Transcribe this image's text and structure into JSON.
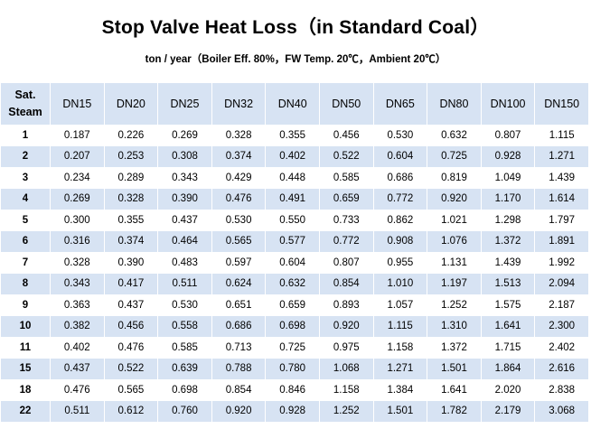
{
  "title": "Stop Valve Heat Loss（in Standard Coal）",
  "subtitle": "ton / year（Boiler Eff. 80%，FW Temp. 20℃，Ambient 20℃）",
  "header": {
    "first_line1": "Sat.",
    "first_line2": "Steam",
    "columns": [
      "DN15",
      "DN20",
      "DN25",
      "DN32",
      "DN40",
      "DN50",
      "DN65",
      "DN80",
      "DN100",
      "DN150"
    ]
  },
  "rows": [
    {
      "pressure": "1",
      "values": [
        "0.187",
        "0.226",
        "0.269",
        "0.328",
        "0.355",
        "0.456",
        "0.530",
        "0.632",
        "0.807",
        "1.115"
      ]
    },
    {
      "pressure": "2",
      "values": [
        "0.207",
        "0.253",
        "0.308",
        "0.374",
        "0.402",
        "0.522",
        "0.604",
        "0.725",
        "0.928",
        "1.271"
      ]
    },
    {
      "pressure": "3",
      "values": [
        "0.234",
        "0.289",
        "0.343",
        "0.429",
        "0.448",
        "0.585",
        "0.686",
        "0.819",
        "1.049",
        "1.439"
      ]
    },
    {
      "pressure": "4",
      "values": [
        "0.269",
        "0.328",
        "0.390",
        "0.476",
        "0.491",
        "0.659",
        "0.772",
        "0.920",
        "1.170",
        "1.614"
      ]
    },
    {
      "pressure": "5",
      "values": [
        "0.300",
        "0.355",
        "0.437",
        "0.530",
        "0.550",
        "0.733",
        "0.862",
        "1.021",
        "1.298",
        "1.797"
      ]
    },
    {
      "pressure": "6",
      "values": [
        "0.316",
        "0.374",
        "0.464",
        "0.565",
        "0.577",
        "0.772",
        "0.908",
        "1.076",
        "1.372",
        "1.891"
      ]
    },
    {
      "pressure": "7",
      "values": [
        "0.328",
        "0.390",
        "0.483",
        "0.597",
        "0.604",
        "0.807",
        "0.955",
        "1.131",
        "1.439",
        "1.992"
      ]
    },
    {
      "pressure": "8",
      "values": [
        "0.343",
        "0.417",
        "0.511",
        "0.624",
        "0.632",
        "0.854",
        "1.010",
        "1.197",
        "1.513",
        "2.094"
      ]
    },
    {
      "pressure": "9",
      "values": [
        "0.363",
        "0.437",
        "0.530",
        "0.651",
        "0.659",
        "0.893",
        "1.057",
        "1.252",
        "1.575",
        "2.187"
      ]
    },
    {
      "pressure": "10",
      "values": [
        "0.382",
        "0.456",
        "0.558",
        "0.686",
        "0.698",
        "0.920",
        "1.115",
        "1.310",
        "1.641",
        "2.300"
      ]
    },
    {
      "pressure": "11",
      "values": [
        "0.402",
        "0.476",
        "0.585",
        "0.713",
        "0.725",
        "0.975",
        "1.158",
        "1.372",
        "1.715",
        "2.402"
      ]
    },
    {
      "pressure": "15",
      "values": [
        "0.437",
        "0.522",
        "0.639",
        "0.788",
        "0.780",
        "1.068",
        "1.271",
        "1.501",
        "1.864",
        "2.616"
      ]
    },
    {
      "pressure": "18",
      "values": [
        "0.476",
        "0.565",
        "0.698",
        "0.854",
        "0.846",
        "1.158",
        "1.384",
        "1.641",
        "2.020",
        "2.838"
      ]
    },
    {
      "pressure": "22",
      "values": [
        "0.511",
        "0.612",
        "0.760",
        "0.920",
        "0.928",
        "1.252",
        "1.501",
        "1.782",
        "2.179",
        "3.068"
      ]
    }
  ]
}
